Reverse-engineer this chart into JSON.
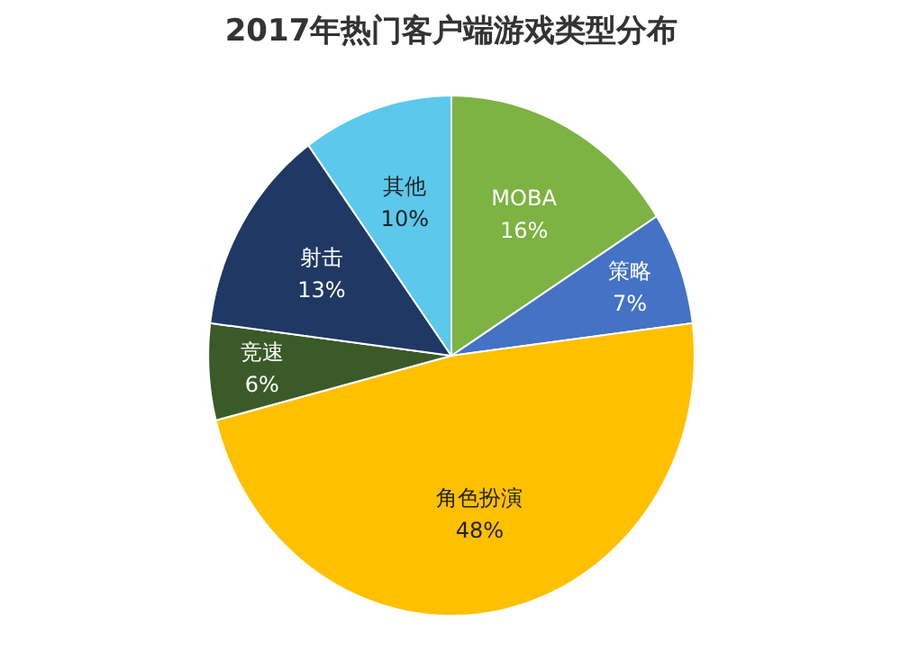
{
  "chart_data": {
    "type": "pie",
    "title": "2017年热门客户端游戏类型分布",
    "categories": [
      "MOBA",
      "策略",
      "角色扮演",
      "竞速",
      "射击",
      "其他"
    ],
    "values": [
      16,
      7,
      48,
      6,
      13,
      10
    ],
    "value_labels": [
      "16%",
      "7%",
      "48%",
      "6%",
      "13%",
      "10%"
    ],
    "colors": [
      "#7cb342",
      "#4472c4",
      "#ffc000",
      "#3a5a28",
      "#1f3864",
      "#5bc8ec"
    ]
  }
}
